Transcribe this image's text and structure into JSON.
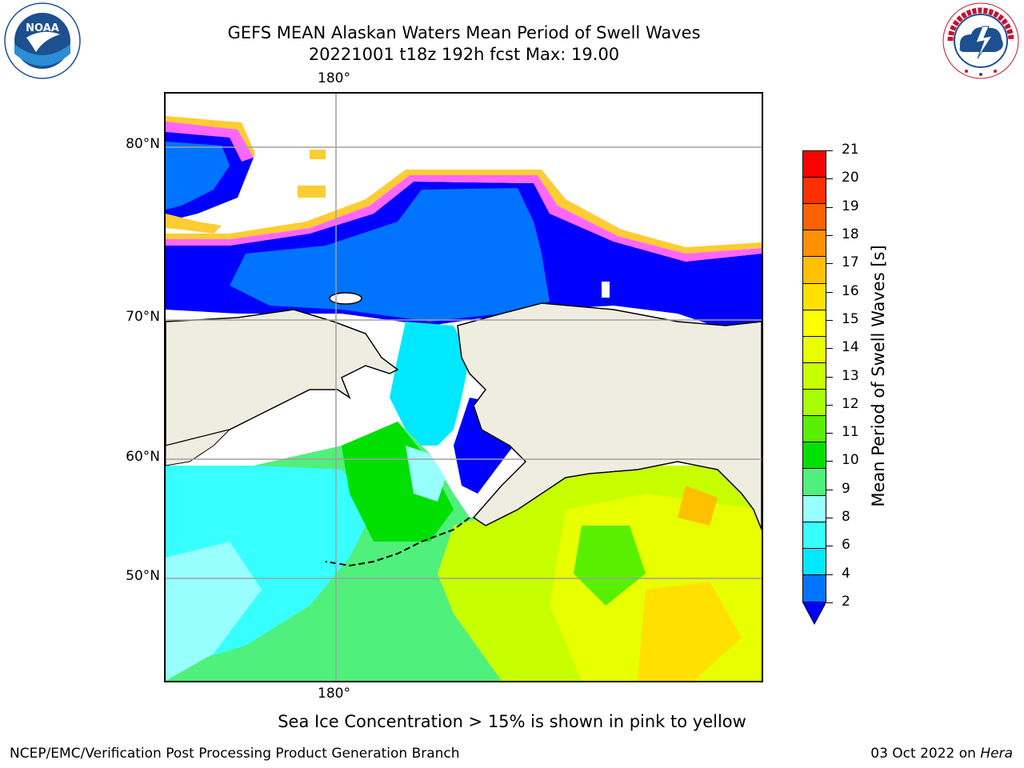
{
  "header": {
    "title_line1": "GEFS MEAN Alaskan Waters Mean Period of Swell Waves",
    "title_line2": "20221001 t18z 192h fcst   Max: 19.00"
  },
  "logos": {
    "noaa_text": "NOAA",
    "noaa_ring_text": "NATIONAL OCEANIC AND ATMOSPHERIC ADMINISTRATION · U.S. DEPARTMENT OF COMMERCE",
    "nws_ring_text": "NATIONAL WEATHER SERVICE"
  },
  "map": {
    "lon_label_top": "180°",
    "lon_label_bottom": "180°",
    "lat_labels": [
      "80°N",
      "70°N",
      "60°N",
      "50°N"
    ]
  },
  "colorbar": {
    "title": "Mean Period of Swell Waves [s]",
    "ticks": [
      "21",
      "20",
      "19",
      "18",
      "17",
      "16",
      "15",
      "14",
      "13",
      "12",
      "11",
      "10",
      "9",
      "8",
      "6",
      "4",
      "2"
    ],
    "colors_bottom_to_top": [
      "#0074ff",
      "#00e8ff",
      "#38ffff",
      "#98ffff",
      "#4ff07b",
      "#00e000",
      "#58f000",
      "#a8ff00",
      "#c8ff00",
      "#e8ff00",
      "#ffff00",
      "#ffe000",
      "#ffc000",
      "#ff9000",
      "#ff6000",
      "#ff3000",
      "#ff0000"
    ],
    "under_color": "#0000ff"
  },
  "note": "Sea Ice Concentration > 15% is shown in pink to yellow",
  "footer": {
    "left": "NCEP/EMC/Verification Post Processing Product Generation Branch",
    "right_date": "03 Oct 2022 on ",
    "right_host": "Hera"
  },
  "colors": {
    "land": "#efede0",
    "ice_pink": "#ff66ff",
    "ice_yellow": "#ffcc33",
    "grid": "#a0a0a0"
  }
}
